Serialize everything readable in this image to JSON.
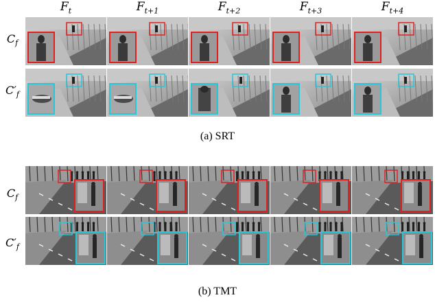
{
  "column_headers": [
    {
      "base": "F",
      "sub": "t"
    },
    {
      "base": "F",
      "sub": "t+1"
    },
    {
      "base": "F",
      "sub": "t+2"
    },
    {
      "base": "F",
      "sub": "t+3"
    },
    {
      "base": "F",
      "sub": "t+4"
    }
  ],
  "row_labels": [
    {
      "base": "C",
      "sub": "f"
    },
    {
      "base": "C′",
      "sub": "f"
    }
  ],
  "panels": [
    {
      "caption": "(a) SRT",
      "scene": "srt"
    },
    {
      "caption": "(b) TMT",
      "scene": "tmt"
    }
  ],
  "colors": {
    "red_box": "#e02020",
    "cyan_box": "#25c8d8"
  }
}
